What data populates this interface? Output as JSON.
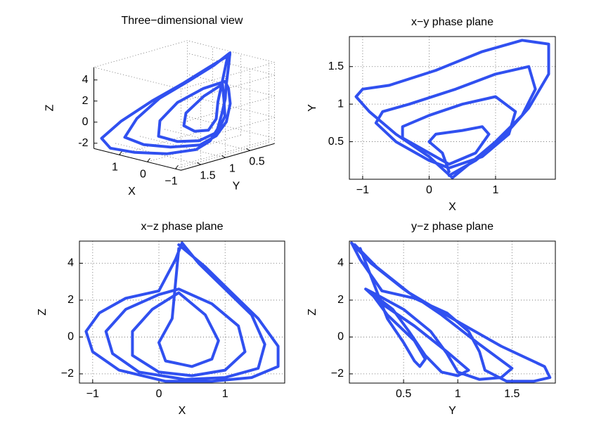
{
  "chart_data": [
    {
      "type": "line3d",
      "title": "Three−dimensional view",
      "xlabel": "X",
      "ylabel": "Y",
      "zlabel": "Z",
      "xlim": [
        -1.2,
        1.9
      ],
      "ylim": [
        0,
        1.9
      ],
      "zlim": [
        -2.5,
        5.2
      ],
      "xticks": [
        {
          "value": -1,
          "label": "−1"
        },
        0,
        1
      ],
      "yticks": [
        0.5,
        1,
        1.5
      ],
      "zticks": [
        -2,
        0,
        2,
        4
      ],
      "grid": true,
      "series": [
        {
          "color": "#3050f0",
          "x": [
            0.3,
            0.7,
            1.1,
            1.5,
            1.8,
            1.8,
            1.4,
            0.8,
            0.1,
            -0.6,
            -1.0,
            -1.1,
            -0.9,
            -0.5,
            0.0,
            0.25,
            0.35,
            0.6,
            1.0,
            1.4,
            1.6,
            1.5,
            1.0,
            0.4,
            -0.3,
            -0.7,
            -0.8,
            -0.5,
            0.0,
            0.3,
            0.8,
            1.2,
            1.3,
            1.0,
            0.5,
            0.0,
            -0.4,
            -0.4,
            -0.1,
            0.3,
            0.7,
            0.9,
            0.8,
            0.5,
            0.1,
            0.0,
            0.2,
            0.3
          ],
          "y": [
            0.05,
            0.25,
            0.55,
            0.95,
            1.4,
            1.8,
            1.85,
            1.7,
            1.45,
            1.25,
            1.2,
            1.1,
            0.9,
            0.6,
            0.3,
            0.1,
            0.02,
            0.2,
            0.5,
            0.85,
            1.2,
            1.5,
            1.4,
            1.2,
            1.0,
            0.9,
            0.75,
            0.5,
            0.25,
            0.15,
            0.3,
            0.6,
            0.9,
            1.1,
            1.0,
            0.85,
            0.7,
            0.55,
            0.4,
            0.2,
            0.35,
            0.6,
            0.7,
            0.65,
            0.6,
            0.5,
            0.35,
            0.1
          ],
          "z": [
            5.0,
            3.8,
            2.4,
            1.0,
            -0.5,
            -1.6,
            -2.2,
            -2.4,
            -2.4,
            -1.8,
            -0.8,
            0.3,
            1.3,
            2.1,
            2.5,
            4.2,
            5.1,
            4.0,
            2.6,
            1.2,
            -0.4,
            -1.7,
            -2.2,
            -2.3,
            -1.9,
            -0.9,
            0.3,
            1.5,
            2.3,
            2.6,
            1.8,
            0.6,
            -0.8,
            -1.8,
            -2.1,
            -1.9,
            -1.0,
            0.3,
            1.5,
            2.4,
            1.2,
            -0.2,
            -1.2,
            -1.6,
            -1.3,
            -0.3,
            1.0,
            4.8
          ]
        }
      ]
    },
    {
      "type": "line",
      "title": "x−y phase plane",
      "xlabel": "X",
      "ylabel": "Y",
      "xlim": [
        -1.2,
        1.9
      ],
      "ylim": [
        0,
        1.9
      ],
      "xticks": [
        {
          "value": -1,
          "label": "−1"
        },
        0,
        1
      ],
      "yticks": [
        0.5,
        1,
        1.5
      ],
      "grid": true,
      "series": [
        {
          "color": "#3050f0",
          "x": [
            0.3,
            0.7,
            1.1,
            1.5,
            1.8,
            1.8,
            1.4,
            0.8,
            0.1,
            -0.6,
            -1.0,
            -1.1,
            -0.9,
            -0.5,
            0.0,
            0.25,
            0.35,
            0.6,
            1.0,
            1.4,
            1.6,
            1.5,
            1.0,
            0.4,
            -0.3,
            -0.7,
            -0.8,
            -0.5,
            0.0,
            0.3,
            0.8,
            1.2,
            1.3,
            1.0,
            0.5,
            0.0,
            -0.4,
            -0.4,
            -0.1,
            0.3,
            0.7,
            0.9,
            0.8,
            0.5,
            0.1,
            0.0,
            0.2,
            0.3
          ],
          "values": [
            0.05,
            0.25,
            0.55,
            0.95,
            1.4,
            1.8,
            1.85,
            1.7,
            1.45,
            1.25,
            1.2,
            1.1,
            0.9,
            0.6,
            0.3,
            0.1,
            0.02,
            0.2,
            0.5,
            0.85,
            1.2,
            1.5,
            1.4,
            1.2,
            1.0,
            0.9,
            0.75,
            0.5,
            0.25,
            0.15,
            0.3,
            0.6,
            0.9,
            1.1,
            1.0,
            0.85,
            0.7,
            0.55,
            0.4,
            0.2,
            0.35,
            0.6,
            0.7,
            0.65,
            0.6,
            0.5,
            0.35,
            0.1
          ]
        }
      ]
    },
    {
      "type": "line",
      "title": "x−z phase plane",
      "xlabel": "X",
      "ylabel": "Z",
      "xlim": [
        -1.2,
        1.9
      ],
      "ylim": [
        -2.5,
        5.2
      ],
      "xticks": [
        {
          "value": -1,
          "label": "−1"
        },
        0,
        1
      ],
      "yticks": [
        {
          "value": -2,
          "label": "−2"
        },
        0,
        2,
        4
      ],
      "grid": true,
      "series": [
        {
          "color": "#3050f0",
          "x": [
            0.3,
            0.7,
            1.1,
            1.5,
            1.8,
            1.8,
            1.4,
            0.8,
            0.1,
            -0.6,
            -1.0,
            -1.1,
            -0.9,
            -0.5,
            0.0,
            0.25,
            0.35,
            0.6,
            1.0,
            1.4,
            1.6,
            1.5,
            1.0,
            0.4,
            -0.3,
            -0.7,
            -0.8,
            -0.5,
            0.0,
            0.3,
            0.8,
            1.2,
            1.3,
            1.0,
            0.5,
            0.0,
            -0.4,
            -0.4,
            -0.1,
            0.3,
            0.7,
            0.9,
            0.8,
            0.5,
            0.1,
            0.0,
            0.2,
            0.3
          ],
          "values": [
            5.0,
            3.8,
            2.4,
            1.0,
            -0.5,
            -1.6,
            -2.2,
            -2.4,
            -2.4,
            -1.8,
            -0.8,
            0.3,
            1.3,
            2.1,
            2.5,
            4.2,
            5.1,
            4.0,
            2.6,
            1.2,
            -0.4,
            -1.7,
            -2.2,
            -2.3,
            -1.9,
            -0.9,
            0.3,
            1.5,
            2.3,
            2.6,
            1.8,
            0.6,
            -0.8,
            -1.8,
            -2.1,
            -1.9,
            -1.0,
            0.3,
            1.5,
            2.4,
            1.2,
            -0.2,
            -1.2,
            -1.6,
            -1.3,
            -0.3,
            1.0,
            4.8
          ]
        }
      ]
    },
    {
      "type": "line",
      "title": "y−z phase plane",
      "xlabel": "Y",
      "ylabel": "Z",
      "xlim": [
        0,
        1.9
      ],
      "ylim": [
        -2.5,
        5.2
      ],
      "xticks": [
        0.5,
        1,
        1.5
      ],
      "yticks": [
        {
          "value": -2,
          "label": "−2"
        },
        0,
        2,
        4
      ],
      "grid": true,
      "series": [
        {
          "color": "#3050f0",
          "x": [
            0.05,
            0.25,
            0.55,
            0.95,
            1.4,
            1.8,
            1.85,
            1.7,
            1.45,
            1.25,
            1.2,
            1.1,
            0.9,
            0.6,
            0.3,
            0.1,
            0.02,
            0.2,
            0.5,
            0.85,
            1.2,
            1.5,
            1.4,
            1.2,
            1.0,
            0.9,
            0.75,
            0.5,
            0.25,
            0.15,
            0.3,
            0.6,
            0.9,
            1.1,
            1.0,
            0.85,
            0.7,
            0.55,
            0.4,
            0.2,
            0.35,
            0.6,
            0.7,
            0.65,
            0.6,
            0.5,
            0.35,
            0.1
          ],
          "values": [
            5.0,
            3.8,
            2.4,
            1.0,
            -0.5,
            -1.6,
            -2.2,
            -2.4,
            -2.4,
            -1.8,
            -0.8,
            0.3,
            1.3,
            2.1,
            2.5,
            4.2,
            5.1,
            4.0,
            2.6,
            1.2,
            -0.4,
            -1.7,
            -2.2,
            -2.3,
            -1.9,
            -0.9,
            0.3,
            1.5,
            2.3,
            2.6,
            1.8,
            0.6,
            -0.8,
            -1.8,
            -2.1,
            -1.9,
            -1.0,
            0.3,
            1.5,
            2.4,
            1.2,
            -0.2,
            -1.2,
            -1.6,
            -1.3,
            -0.3,
            1.0,
            4.8
          ]
        }
      ]
    }
  ]
}
